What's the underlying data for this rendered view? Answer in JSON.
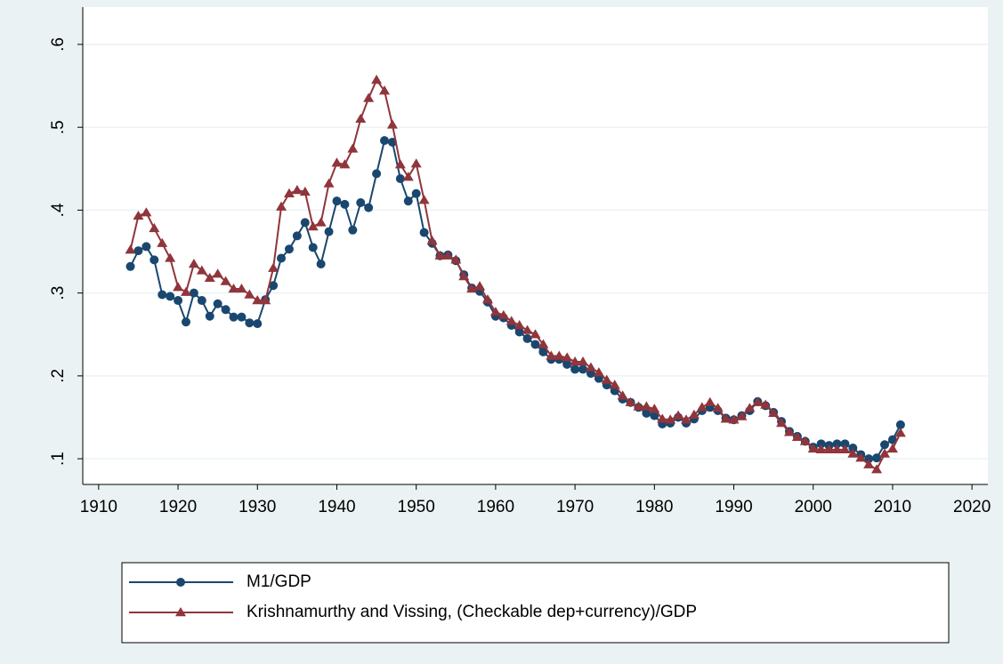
{
  "chart_data": {
    "type": "line",
    "x": [
      1914,
      1915,
      1916,
      1917,
      1918,
      1919,
      1920,
      1921,
      1922,
      1923,
      1924,
      1925,
      1926,
      1927,
      1928,
      1929,
      1930,
      1931,
      1932,
      1933,
      1934,
      1935,
      1936,
      1937,
      1938,
      1939,
      1940,
      1941,
      1942,
      1943,
      1944,
      1945,
      1946,
      1947,
      1948,
      1949,
      1950,
      1951,
      1952,
      1953,
      1954,
      1955,
      1956,
      1957,
      1958,
      1959,
      1960,
      1961,
      1962,
      1963,
      1964,
      1965,
      1966,
      1967,
      1968,
      1969,
      1970,
      1971,
      1972,
      1973,
      1974,
      1975,
      1976,
      1977,
      1978,
      1979,
      1980,
      1981,
      1982,
      1983,
      1984,
      1985,
      1986,
      1987,
      1988,
      1989,
      1990,
      1991,
      1992,
      1993,
      1994,
      1995,
      1996,
      1997,
      1998,
      1999,
      2000,
      2001,
      2002,
      2003,
      2004,
      2005,
      2006,
      2007,
      2008,
      2009,
      2010,
      2011
    ],
    "series": [
      {
        "name": "M1/GDP",
        "color": "#1a476f",
        "marker": "circle",
        "values": [
          0.332,
          0.351,
          0.356,
          0.34,
          0.298,
          0.296,
          0.291,
          0.265,
          0.3,
          0.291,
          0.272,
          0.287,
          0.28,
          0.271,
          0.271,
          0.264,
          0.263,
          0.292,
          0.309,
          0.342,
          0.353,
          0.369,
          0.385,
          0.355,
          0.335,
          0.374,
          0.411,
          0.407,
          0.376,
          0.409,
          0.403,
          0.444,
          0.484,
          0.482,
          0.438,
          0.411,
          0.42,
          0.373,
          0.36,
          0.345,
          0.346,
          0.339,
          0.322,
          0.306,
          0.302,
          0.289,
          0.272,
          0.27,
          0.261,
          0.253,
          0.245,
          0.238,
          0.229,
          0.22,
          0.22,
          0.214,
          0.208,
          0.208,
          0.203,
          0.197,
          0.189,
          0.182,
          0.172,
          0.168,
          0.162,
          0.155,
          0.152,
          0.142,
          0.143,
          0.15,
          0.143,
          0.148,
          0.158,
          0.162,
          0.158,
          0.149,
          0.147,
          0.152,
          0.158,
          0.169,
          0.164,
          0.156,
          0.145,
          0.133,
          0.127,
          0.121,
          0.114,
          0.118,
          0.116,
          0.118,
          0.118,
          0.113,
          0.105,
          0.1,
          0.101,
          0.117,
          0.123,
          0.141
        ]
      },
      {
        "name": "Krishnamurthy and Vissing, (Checkable dep+currency)/GDP",
        "color": "#90353b",
        "marker": "triangle",
        "values": [
          0.352,
          0.393,
          0.397,
          0.378,
          0.36,
          0.342,
          0.307,
          0.301,
          0.335,
          0.327,
          0.318,
          0.323,
          0.314,
          0.305,
          0.305,
          0.298,
          0.291,
          0.291,
          0.33,
          0.404,
          0.42,
          0.424,
          0.422,
          0.38,
          0.385,
          0.432,
          0.457,
          0.455,
          0.474,
          0.51,
          0.535,
          0.557,
          0.544,
          0.503,
          0.455,
          0.44,
          0.456,
          0.412,
          0.363,
          0.345,
          0.345,
          0.34,
          0.32,
          0.305,
          0.308,
          0.292,
          0.277,
          0.273,
          0.266,
          0.261,
          0.255,
          0.25,
          0.238,
          0.224,
          0.224,
          0.222,
          0.217,
          0.217,
          0.21,
          0.204,
          0.195,
          0.189,
          0.176,
          0.168,
          0.163,
          0.163,
          0.16,
          0.148,
          0.147,
          0.152,
          0.147,
          0.153,
          0.162,
          0.168,
          0.161,
          0.148,
          0.147,
          0.151,
          0.161,
          0.168,
          0.165,
          0.155,
          0.143,
          0.132,
          0.126,
          0.121,
          0.112,
          0.111,
          0.111,
          0.111,
          0.111,
          0.106,
          0.101,
          0.093,
          0.087,
          0.106,
          0.112,
          0.131
        ]
      }
    ],
    "xlim": [
      1908,
      2022
    ],
    "xticks": [
      1910,
      1920,
      1930,
      1940,
      1950,
      1960,
      1970,
      1980,
      1990,
      2000,
      2010,
      2020
    ],
    "ylim": [
      0.069,
      0.645
    ],
    "yticks": [
      {
        "value": 0.1,
        "label": ".1"
      },
      {
        "value": 0.2,
        "label": ".2"
      },
      {
        "value": 0.3,
        "label": ".3"
      },
      {
        "value": 0.4,
        "label": ".4"
      },
      {
        "value": 0.5,
        "label": ".5"
      },
      {
        "value": 0.6,
        "label": ".6"
      }
    ],
    "grid": true,
    "legend_position": "bottom"
  }
}
